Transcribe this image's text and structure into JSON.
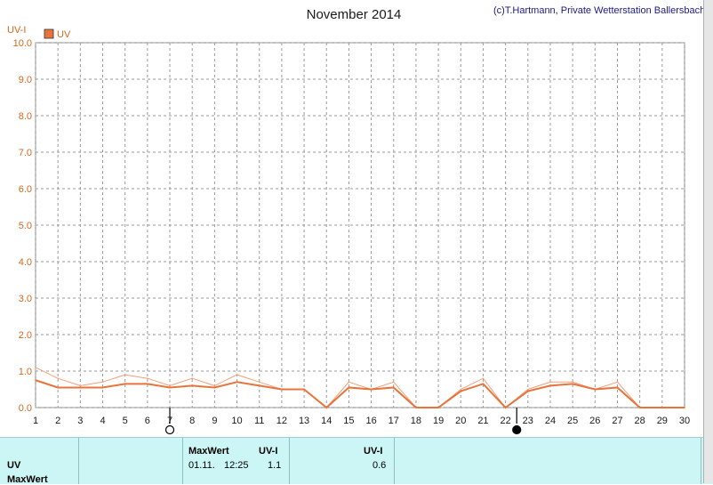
{
  "chart_data": {
    "type": "line",
    "title": "November 2014",
    "credit": "(c)T.Hartmann, Private Wetterstation Ballersbach",
    "ylabel": "UV-I",
    "ylim": [
      0,
      10
    ],
    "yticks": [
      "0.0",
      "1.0",
      "2.0",
      "3.0",
      "4.0",
      "5.0",
      "6.0",
      "7.0",
      "8.0",
      "9.0",
      "10.0"
    ],
    "x": [
      1,
      2,
      3,
      4,
      5,
      6,
      7,
      8,
      9,
      10,
      11,
      12,
      13,
      14,
      15,
      16,
      17,
      18,
      19,
      20,
      21,
      22,
      23,
      24,
      25,
      26,
      27,
      28,
      29,
      30
    ],
    "xlim": [
      1,
      30
    ],
    "grid": true,
    "legend": "top-left",
    "series": [
      {
        "name": "UV",
        "color": "#e8743b",
        "values": [
          0.75,
          0.55,
          0.55,
          0.55,
          0.65,
          0.65,
          0.55,
          0.6,
          0.55,
          0.7,
          0.6,
          0.5,
          0.5,
          0.0,
          0.55,
          0.5,
          0.55,
          0.0,
          0.0,
          0.45,
          0.65,
          0.0,
          0.45,
          0.6,
          0.65,
          0.5,
          0.55,
          0.0,
          0.0,
          0.0
        ]
      },
      {
        "color": "#f2a07a",
        "values": [
          1.1,
          0.8,
          0.6,
          0.7,
          0.9,
          0.8,
          0.6,
          0.8,
          0.6,
          0.9,
          0.7,
          0.5,
          0.5,
          0.0,
          0.7,
          0.5,
          0.7,
          0.0,
          0.0,
          0.5,
          0.8,
          0.0,
          0.5,
          0.7,
          0.7,
          0.5,
          0.7,
          0.0,
          0.0,
          0.0
        ]
      }
    ],
    "markers": [
      {
        "x": 7,
        "symbol": "open-circle"
      },
      {
        "x": 22.5,
        "symbol": "filled-circle"
      }
    ]
  },
  "table": {
    "row1_label": "UV",
    "row2_label": "MaxWert",
    "max_header": "MaxWert",
    "max_unit": "UV-I",
    "max_date": "01.11.",
    "max_time": "12:25",
    "max_value": "1.1",
    "mean_unit": "UV-I",
    "mean_value": "0.6"
  }
}
